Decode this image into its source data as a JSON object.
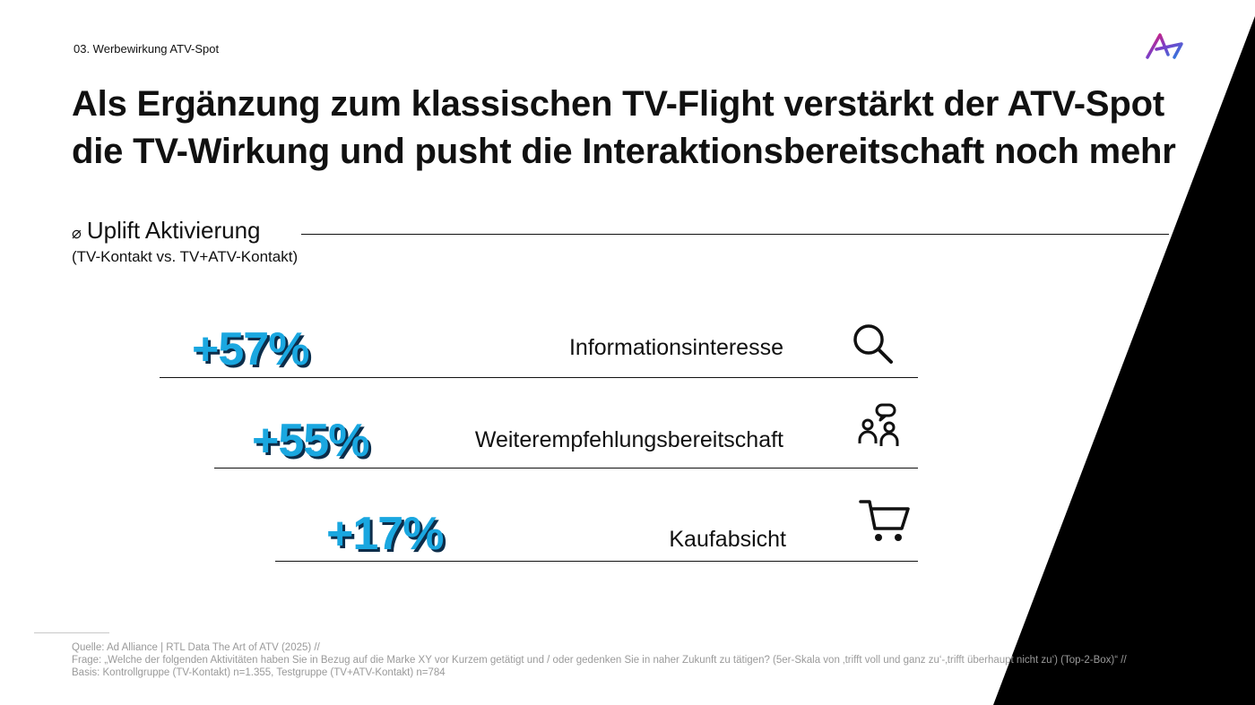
{
  "colors": {
    "accent": "#1aa7e0",
    "shadow": "#0c2d4a",
    "wedge": "#000000",
    "text": "#111111"
  },
  "header": {
    "section_label": "03. Werbewirkung ATV-Spot",
    "logo_icon": "ad-alliance-logo"
  },
  "headline": {
    "line1": "Als Ergänzung zum klassischen TV-Flight verstärkt der ATV-Spot",
    "line2": "die TV-Wirkung und pusht die Interaktionsbereitschaft noch mehr"
  },
  "metric": {
    "symbol": "⌀",
    "title": "Uplift Aktivierung",
    "subtitle": "(TV-Kontakt vs. TV+ATV-Kontakt)"
  },
  "rows": [
    {
      "value": "+57%",
      "label": "Informationsinteresse",
      "icon": "search-icon"
    },
    {
      "value": "+55%",
      "label": "Weiterempfehlungsbereitschaft",
      "icon": "people-chat-icon"
    },
    {
      "value": "+17%",
      "label": "Kaufabsicht",
      "icon": "shopping-cart-icon"
    }
  ],
  "footer": {
    "source": "Quelle: Ad Alliance | RTL Data The Art of ATV (2025) //",
    "question": "Frage: „Welche der folgenden Aktivitäten haben Sie in Bezug auf die Marke XY vor Kurzem getätigt und / oder gedenken Sie in naher Zukunft zu tätigen? (5er-Skala von ‚trifft voll und ganz zu‘-‚trifft überhaupt nicht zu‘) (Top-2-Box)“ //",
    "basis": "Basis: Kontrollgruppe (TV-Kontakt) n=1.355, Testgruppe (TV+ATV-Kontakt) n=784"
  }
}
